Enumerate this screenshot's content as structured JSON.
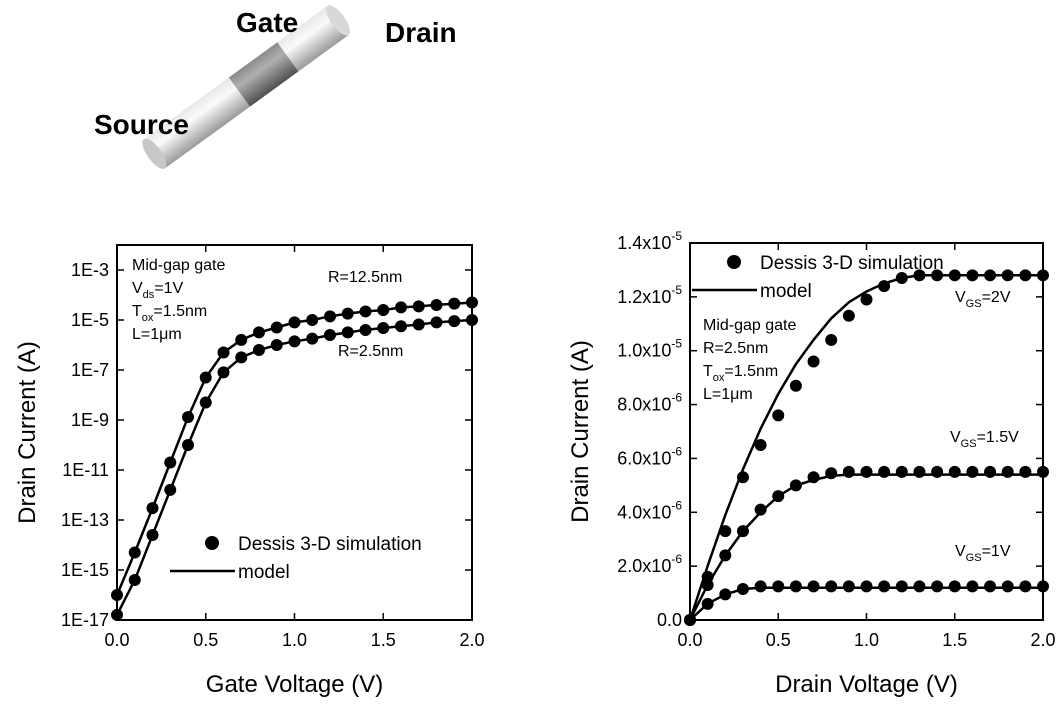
{
  "illustration": {
    "labels": [
      "Gate",
      "Drain",
      "Source"
    ]
  },
  "chart_data": [
    {
      "type": "scatter-line",
      "x_label": "Gate Voltage (V)",
      "y_label": "Drain Current (A)",
      "yscale": "log",
      "xlim": [
        0,
        2
      ],
      "ylim": [
        1e-17,
        0.01
      ],
      "xticks": [
        {
          "value": 0,
          "label": "0.0"
        },
        0.5,
        {
          "value": 1,
          "label": "1.0"
        },
        1.5,
        {
          "value": 2,
          "label": "2.0"
        }
      ],
      "yticks": [
        {
          "value": 1e-17,
          "label": "1E-17"
        },
        {
          "value": 1e-15,
          "label": "1E-15"
        },
        {
          "value": 1e-13,
          "label": "1E-13"
        },
        {
          "value": 1e-11,
          "label": "1E-11"
        },
        {
          "value": 1e-09,
          "label": "1E-9"
        },
        {
          "value": 1e-07,
          "label": "1E-7"
        },
        {
          "value": 1e-05,
          "label": "1E-5"
        },
        {
          "value": 0.001,
          "label": "1E-3"
        }
      ],
      "x": [
        0,
        0.1,
        0.2,
        0.3,
        0.4,
        0.5,
        0.6,
        0.7,
        0.8,
        0.9,
        1.0,
        1.1,
        1.2,
        1.3,
        1.4,
        1.5,
        1.6,
        1.7,
        1.8,
        1.9,
        2.0
      ],
      "legend": "lower right",
      "series": [
        {
          "name": "Dessis 3-D simulation",
          "style": "markers",
          "color": "#000000",
          "values": [
            1e-16,
            5e-15,
            3e-13,
            2e-11,
            1.3e-09,
            5e-08,
            5e-07,
            1.6e-06,
            3.2e-06,
            5e-06,
            8e-06,
            1e-05,
            1.4e-05,
            1.8e-05,
            2.2e-05,
            2.5e-05,
            3.2e-05,
            3.5e-05,
            4e-05,
            4.5e-05,
            5e-05
          ]
        },
        {
          "name": "model",
          "style": "line",
          "color": "#000000",
          "values": [
            1e-16,
            5e-15,
            3e-13,
            2e-11,
            1.3e-09,
            5e-08,
            5e-07,
            1.6e-06,
            3.2e-06,
            5e-06,
            8e-06,
            1e-05,
            1.4e-05,
            1.8e-05,
            2.2e-05,
            2.5e-05,
            3.2e-05,
            3.5e-05,
            4e-05,
            4.5e-05,
            5e-05
          ]
        },
        {
          "style": "markers",
          "color": "#000000",
          "values": [
            1.6e-17,
            4e-16,
            2.5e-14,
            1.6e-12,
            1e-10,
            5e-09,
            8e-08,
            3.2e-07,
            6.3e-07,
            1e-06,
            1.4e-06,
            1.8e-06,
            2.5e-06,
            3.2e-06,
            4e-06,
            4.8e-06,
            5.6e-06,
            6.6e-06,
            8e-06,
            9e-06,
            1e-05
          ]
        },
        {
          "style": "line",
          "color": "#000000",
          "values": [
            1.6e-17,
            4e-16,
            2.5e-14,
            1.6e-12,
            1e-10,
            5e-09,
            8e-08,
            3.2e-07,
            6.3e-07,
            1e-06,
            1.4e-06,
            1.8e-06,
            2.5e-06,
            3.2e-06,
            4e-06,
            4.8e-06,
            5.6e-06,
            6.6e-06,
            8e-06,
            9e-06,
            1e-05
          ]
        }
      ],
      "annotations": [
        [
          "Mid-gap gate",
          [
            "V",
            "ds",
            "=1V"
          ],
          [
            "T",
            "ox",
            "=1.5nm"
          ],
          "L=1μm"
        ],
        [
          "R=12.5nm"
        ],
        [
          "R=2.5nm"
        ]
      ]
    },
    {
      "type": "scatter-line",
      "x_label": "Drain Voltage (V)",
      "y_label": "Drain Current (A)",
      "yscale": "linear",
      "xlim": [
        0,
        2
      ],
      "ylim": [
        0,
        1.4e-05
      ],
      "xticks": [
        {
          "value": 0,
          "label": "0.0"
        },
        0.5,
        {
          "value": 1,
          "label": "1.0"
        },
        1.5,
        {
          "value": 2,
          "label": "2.0"
        }
      ],
      "yticks": [
        {
          "value": 0,
          "label": "0.0"
        },
        {
          "value": 2e-06,
          "label": "2.0x10",
          "exponent": "-6"
        },
        {
          "value": 4e-06,
          "label": "4.0x10",
          "exponent": "-6"
        },
        {
          "value": 6e-06,
          "label": "6.0x10",
          "exponent": "-6"
        },
        {
          "value": 8e-06,
          "label": "8.0x10",
          "exponent": "-6"
        },
        {
          "value": 1e-05,
          "label": "1.0x10",
          "exponent": "-5"
        },
        {
          "value": 1.2e-05,
          "label": "1.2x10",
          "exponent": "-5"
        },
        {
          "value": 1.4e-05,
          "label": "1.4x10",
          "exponent": "-5"
        }
      ],
      "x": [
        0,
        0.1,
        0.2,
        0.3,
        0.4,
        0.5,
        0.6,
        0.7,
        0.8,
        0.9,
        1.0,
        1.1,
        1.2,
        1.3,
        1.4,
        1.5,
        1.6,
        1.7,
        1.8,
        1.9,
        2.0
      ],
      "legend": "upper left",
      "series": [
        {
          "name": "Dessis 3-D simulation",
          "style": "markers",
          "color": "#000000",
          "values": [
            0,
            1.6e-06,
            3.3e-06,
            5.3e-06,
            6.5e-06,
            7.6e-06,
            8.7e-06,
            9.6e-06,
            1.04e-05,
            1.13e-05,
            1.19e-05,
            1.24e-05,
            1.27e-05,
            1.28e-05,
            1.28e-05,
            1.28e-05,
            1.28e-05,
            1.28e-05,
            1.28e-05,
            1.28e-05,
            1.28e-05
          ]
        },
        {
          "name": "model",
          "style": "line",
          "color": "#000000",
          "values": [
            0,
            2e-06,
            3.9e-06,
            5.6e-06,
            7.1e-06,
            8.4e-06,
            9.5e-06,
            1.04e-05,
            1.12e-05,
            1.18e-05,
            1.22e-05,
            1.25e-05,
            1.27e-05,
            1.28e-05,
            1.28e-05,
            1.28e-05,
            1.28e-05,
            1.28e-05,
            1.28e-05,
            1.28e-05,
            1.28e-05
          ]
        },
        {
          "style": "markers",
          "color": "#000000",
          "values": [
            0,
            1.3e-06,
            2.4e-06,
            3.3e-06,
            4.1e-06,
            4.6e-06,
            5e-06,
            5.3e-06,
            5.45e-06,
            5.5e-06,
            5.5e-06,
            5.5e-06,
            5.5e-06,
            5.5e-06,
            5.5e-06,
            5.5e-06,
            5.5e-06,
            5.5e-06,
            5.5e-06,
            5.5e-06,
            5.5e-06
          ]
        },
        {
          "style": "line",
          "color": "#000000",
          "values": [
            0,
            1.3e-06,
            2.4e-06,
            3.3e-06,
            4e-06,
            4.6e-06,
            5e-06,
            5.2e-06,
            5.35e-06,
            5.4e-06,
            5.4e-06,
            5.4e-06,
            5.4e-06,
            5.4e-06,
            5.4e-06,
            5.4e-06,
            5.4e-06,
            5.4e-06,
            5.4e-06,
            5.4e-06,
            5.4e-06
          ]
        },
        {
          "style": "markers",
          "color": "#000000",
          "values": [
            0,
            6e-07,
            9.5e-07,
            1.15e-06,
            1.25e-06,
            1.25e-06,
            1.25e-06,
            1.25e-06,
            1.25e-06,
            1.25e-06,
            1.25e-06,
            1.25e-06,
            1.25e-06,
            1.25e-06,
            1.25e-06,
            1.25e-06,
            1.25e-06,
            1.25e-06,
            1.25e-06,
            1.25e-06,
            1.25e-06
          ]
        },
        {
          "style": "line",
          "color": "#000000",
          "values": [
            0,
            6e-07,
            9.5e-07,
            1.15e-06,
            1.2e-06,
            1.2e-06,
            1.2e-06,
            1.2e-06,
            1.2e-06,
            1.2e-06,
            1.2e-06,
            1.2e-06,
            1.2e-06,
            1.2e-06,
            1.2e-06,
            1.2e-06,
            1.2e-06,
            1.2e-06,
            1.2e-06,
            1.2e-06,
            1.2e-06
          ]
        }
      ],
      "annotations": [
        [
          "Mid-gap gate",
          "R=2.5nm",
          [
            "T",
            "ox",
            "=1.5nm"
          ],
          "L=1μm"
        ],
        [
          [
            "V",
            "GS",
            "=2V"
          ]
        ],
        [
          [
            "V",
            "GS",
            "=1.5V"
          ]
        ],
        [
          [
            "V",
            "GS",
            "=1V"
          ]
        ]
      ]
    }
  ]
}
